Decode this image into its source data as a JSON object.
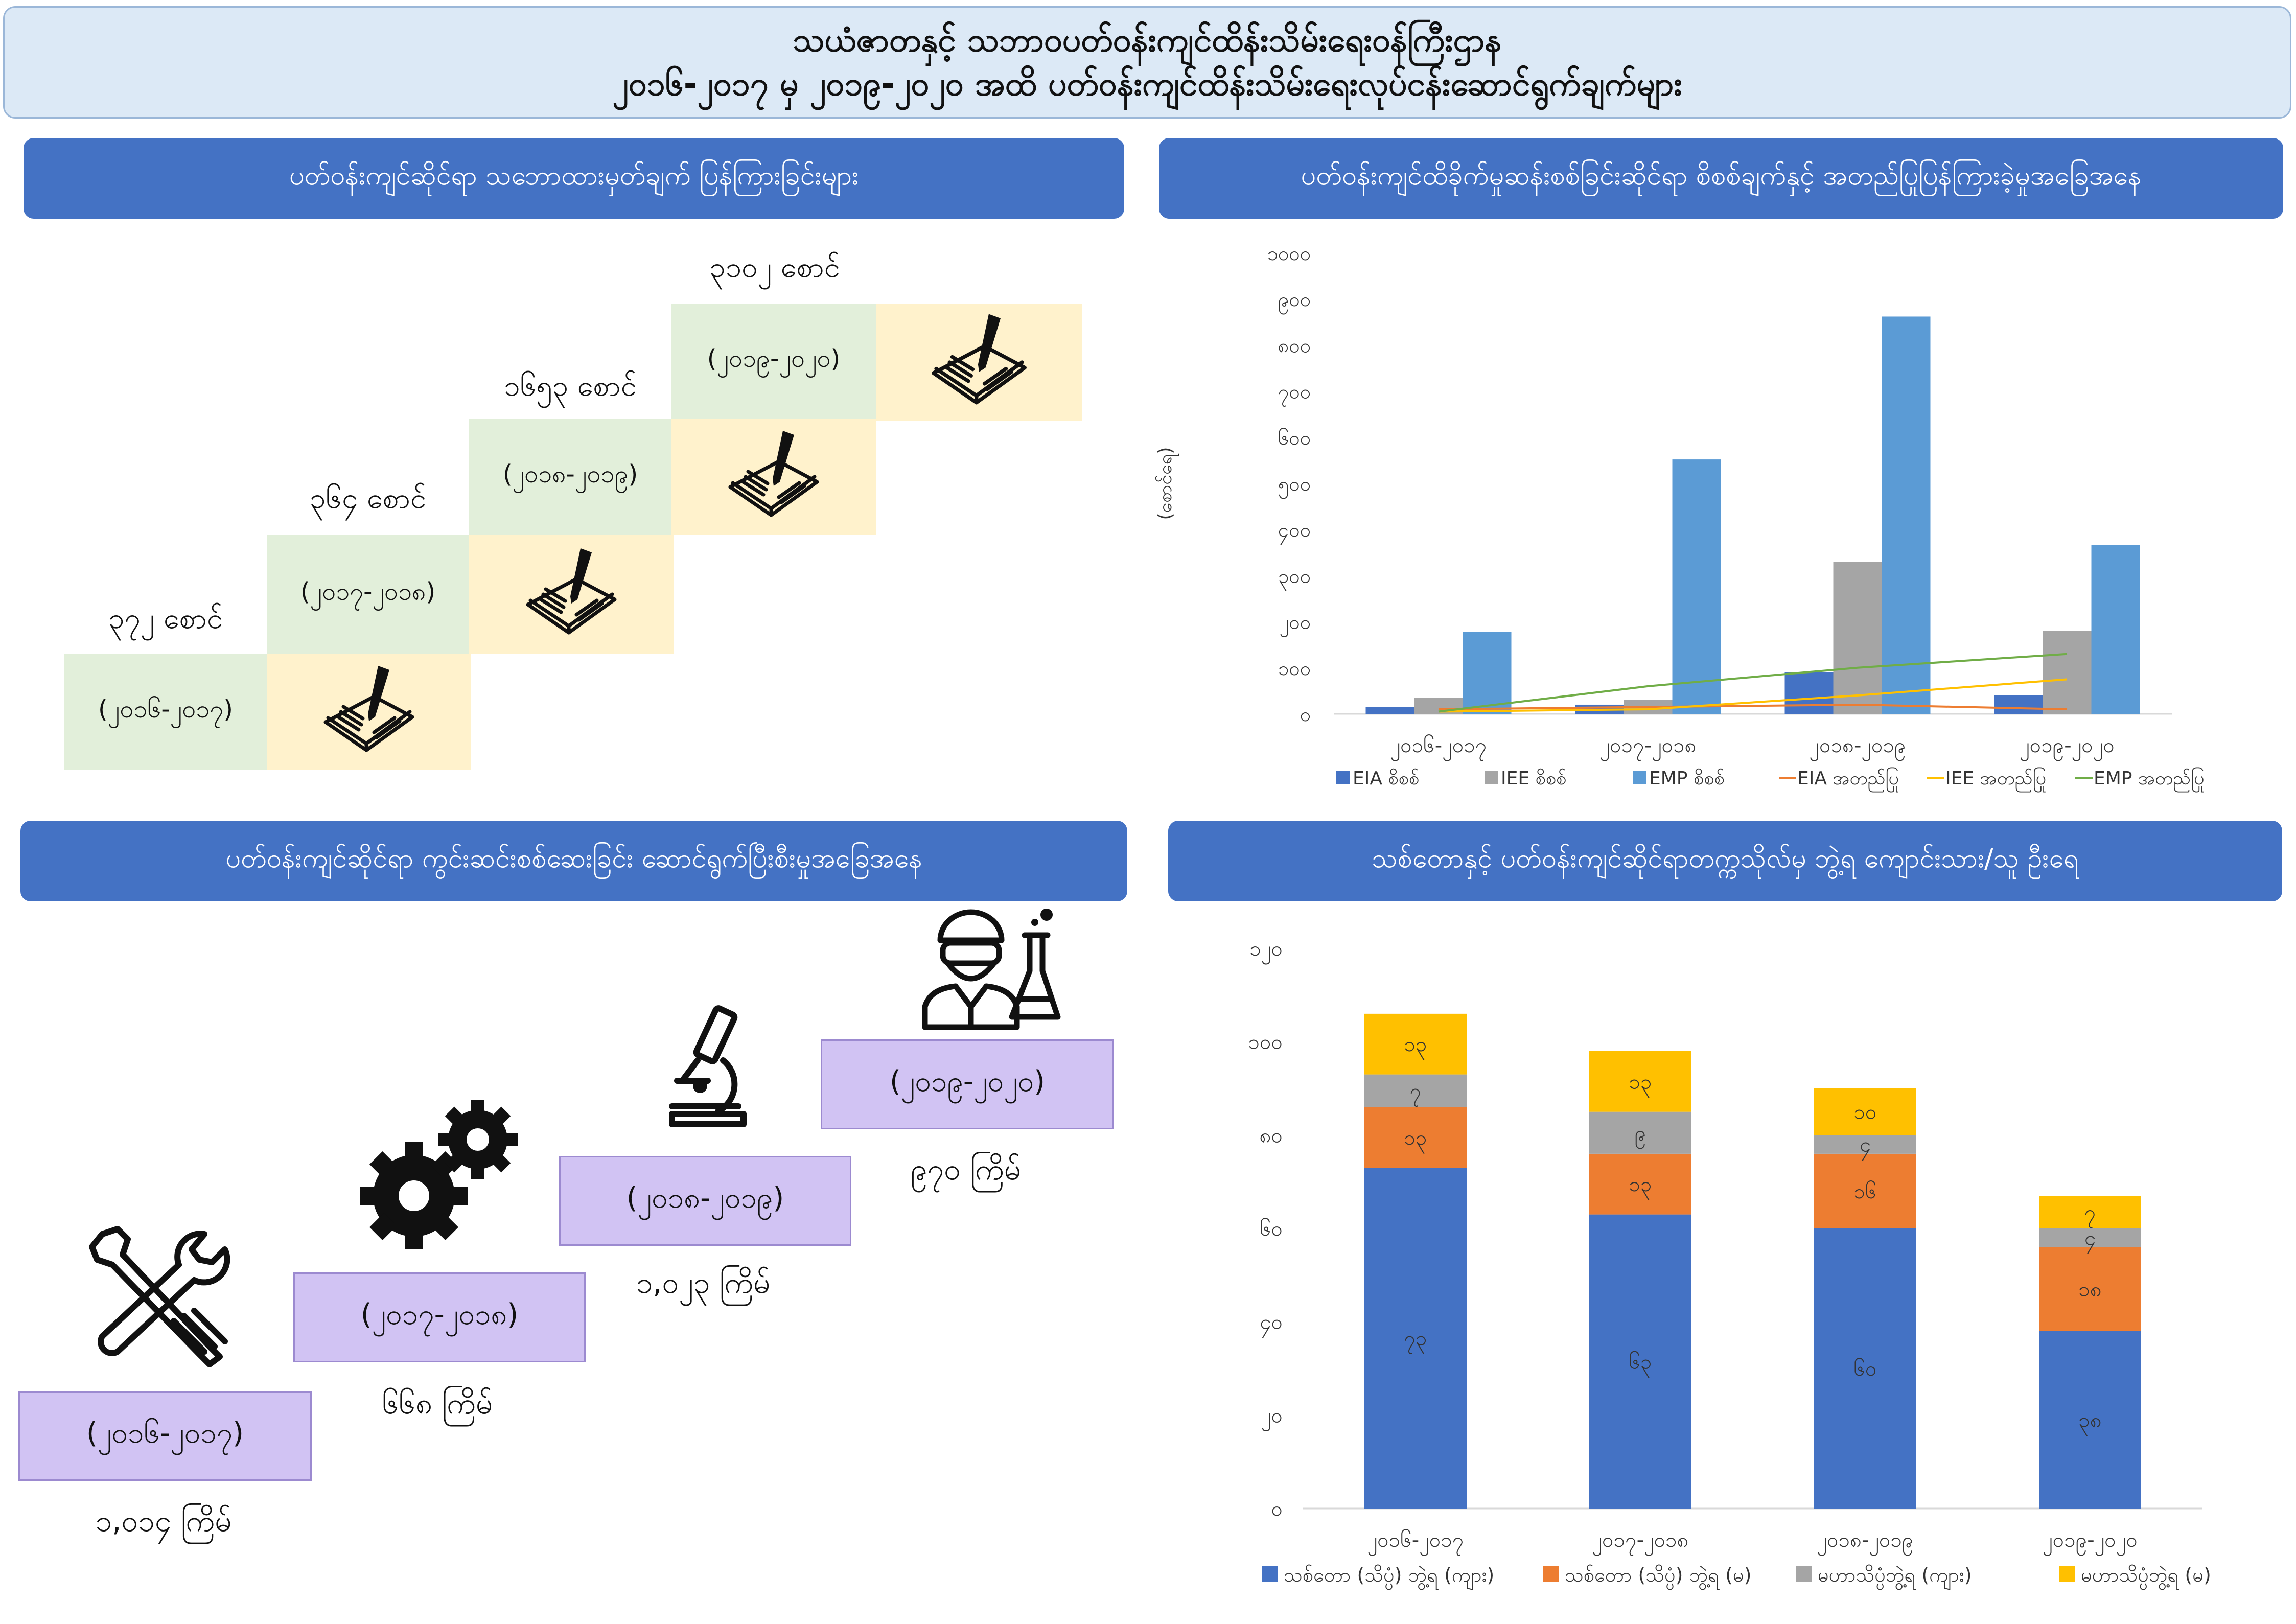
{
  "title": {
    "line1": "သယံဇာတနှင့် သဘာဝပတ်ဝန်းကျင်ထိန်းသိမ်းရေးဝန်ကြီးဌာန",
    "line2": "၂၀၁၆-၂၀၁၇ မှ ၂၀၁၉-၂၀၂၀ အထိ ပတ်ဝန်းကျင်ထိန်းသိမ်းရေးလုပ်ငန်းဆောင်ရွက်ချက်များ"
  },
  "panel1": {
    "header": "ပတ်ဝန်းကျင်ဆိုင်ရာ သဘောထားမှတ်ချက် ပြန်ကြားခြင်းများ",
    "steps": [
      {
        "period": "(၂၀၁၆-၂၀၁၇)",
        "count": "၃၇၂ စောင်",
        "icon": "book-pen-icon"
      },
      {
        "period": "(၂၀၁၇-၂၀၁၈)",
        "count": "၃၆၄ စောင်",
        "icon": "book-pen-icon"
      },
      {
        "period": "(၂၀၁၈-၂၀၁၉)",
        "count": "၁၆၅၃ စောင်",
        "icon": "book-pen-icon"
      },
      {
        "period": "(၂၀၁၉-၂၀၂၀)",
        "count": "၃၁၀၂ စောင်",
        "icon": "book-pen-icon"
      }
    ]
  },
  "panel2": {
    "header": "ပတ်ဝန်းကျင်ထိခိုက်မှုဆန်းစစ်ခြင်းဆိုင်ရာ စိစစ်ချက်နှင့် အတည်ပြုပြန်ကြားခဲ့မှုအခြေအနေ"
  },
  "panel3": {
    "header": "ပတ်ဝန်းကျင်ဆိုင်ရာ ကွင်းဆင်းစစ်ဆေးခြင်း ဆောင်ရွက်ပြီးစီးမှုအခြေအနေ",
    "steps": [
      {
        "period": "(၂၀၁၆-၂၀၁၇)",
        "count": "၁,၀၁၄ ကြိမ်",
        "icon": "tools-icon"
      },
      {
        "period": "(၂၀၁၇-၂၀၁၈)",
        "count": "၆၆၈ ကြိမ်",
        "icon": "gears-icon"
      },
      {
        "period": "(၂၀၁၈-၂၀၁၉)",
        "count": "၁,၀၂၃ ကြိမ်",
        "icon": "microscope-icon"
      },
      {
        "period": "(၂၀၁၉-၂၀၂၀)",
        "count": "၉၇၀ ကြိမ်",
        "icon": "scientist-icon"
      }
    ]
  },
  "panel4": {
    "header": "သစ်တောနှင့် ပတ်ဝန်းကျင်ဆိုင်ရာတက္ကသိုလ်မှ ဘွဲ့ရ ကျောင်းသား/သူ ဦးရေ"
  },
  "chart_data": [
    {
      "type": "bar",
      "ylabel": "(စောင်ရေ)",
      "ylim": [
        0,
        1000
      ],
      "yticks": [
        0,
        100,
        200,
        300,
        400,
        500,
        600,
        700,
        800,
        900,
        1000
      ],
      "ytick_labels": [
        "၀",
        "၁၀၀",
        "၂၀၀",
        "၃၀၀",
        "၄၀၀",
        "၅၀၀",
        "၆၀၀",
        "၇၀၀",
        "၈၀၀",
        "၉၀၀",
        "၁၀၀၀"
      ],
      "categories": [
        "၂၀၁၆-၂၀၁၇",
        "၂၀၁၇-၂၀၁၈",
        "၂၀၁၈-၂၀၁၉",
        "၂၀၁၉-၂၀၂၀"
      ],
      "grid": false,
      "legend": "bottom",
      "series": [
        {
          "name": "EIA စိစစ်",
          "kind": "bar",
          "color": "#4472c4",
          "values": [
            15,
            20,
            90,
            40
          ]
        },
        {
          "name": "IEE စိစစ်",
          "kind": "bar",
          "color": "#a5a5a5",
          "values": [
            35,
            30,
            330,
            180
          ]
        },
        {
          "name": "EMP စိစစ်",
          "kind": "bar",
          "color": "#5b9bd5",
          "values": [
            178,
            552,
            862,
            366
          ]
        },
        {
          "name": "EIA အတည်ပြု",
          "kind": "line",
          "color": "#ed7d31",
          "values": [
            10,
            15,
            20,
            10
          ]
        },
        {
          "name": "IEE အတည်ပြု",
          "kind": "line",
          "color": "#ffc000",
          "values": [
            5,
            10,
            40,
            75
          ]
        },
        {
          "name": "EMP အတည်ပြု",
          "kind": "line",
          "color": "#70ad47",
          "values": [
            5,
            60,
            100,
            130
          ]
        }
      ]
    },
    {
      "type": "bar",
      "stacked": true,
      "ylim": [
        0,
        120
      ],
      "yticks": [
        0,
        20,
        40,
        60,
        80,
        100,
        120
      ],
      "ytick_labels": [
        "၀",
        "၂၀",
        "၄၀",
        "၆၀",
        "၈၀",
        "၁၀၀",
        "၁၂၀"
      ],
      "categories": [
        "၂၀၁၆-၂၀၁၇",
        "၂၀၁၇-၂၀၁၈",
        "၂၀၁၈-၂၀၁၉",
        "၂၀၁၉-၂၀၂၀"
      ],
      "grid": false,
      "legend": "bottom",
      "series": [
        {
          "name": "သစ်တော (သိပ္ပံ) ဘွဲ့ရ (ကျား)",
          "color": "#4472c4",
          "values": [
            73,
            63,
            60,
            38
          ],
          "labels": [
            "၇၃",
            "၆၃",
            "၆၀",
            "၃၈"
          ]
        },
        {
          "name": "သစ်တော (သိပ္ပံ) ဘွဲ့ရ (မ)",
          "color": "#ed7d31",
          "values": [
            13,
            13,
            16,
            18
          ],
          "labels": [
            "၁၃",
            "၁၃",
            "၁၆",
            "၁၈"
          ]
        },
        {
          "name": "မဟာသိပ္ပံဘွဲ့ရ (ကျား)",
          "color": "#a5a5a5",
          "values": [
            7,
            9,
            4,
            4
          ],
          "labels": [
            "၇",
            "၉",
            "၄",
            "၄"
          ]
        },
        {
          "name": "မဟာသိပ္ပံဘွဲ့ရ (မ)",
          "color": "#ffc000",
          "values": [
            13,
            13,
            10,
            7
          ],
          "labels": [
            "၁၃",
            "၁၃",
            "၁၀",
            "၇"
          ]
        }
      ]
    }
  ]
}
